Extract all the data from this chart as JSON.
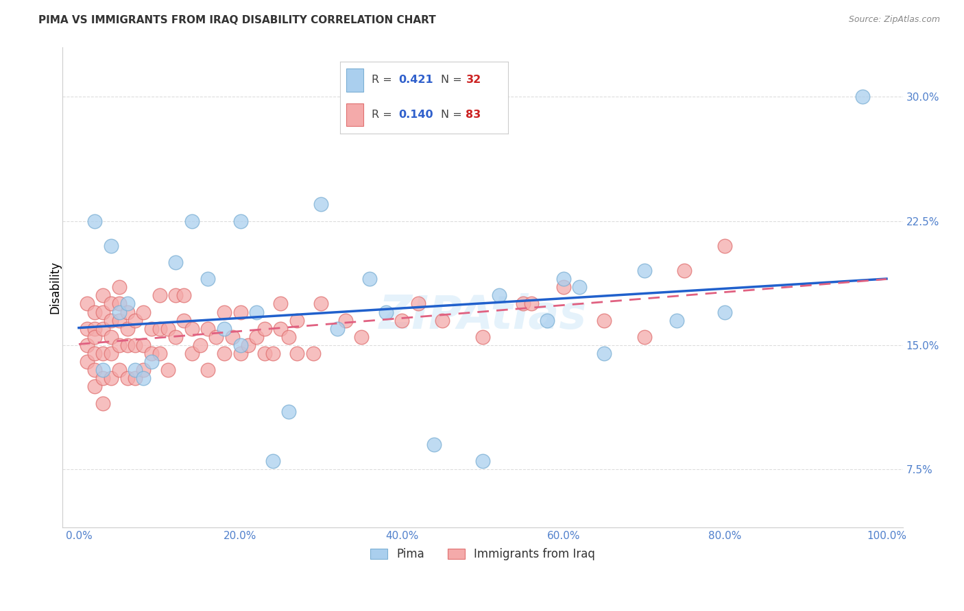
{
  "title": "PIMA VS IMMIGRANTS FROM IRAQ DISABILITY CORRELATION CHART",
  "source": "Source: ZipAtlas.com",
  "ylabel": "Disability",
  "xlim": [
    -2,
    102
  ],
  "ylim": [
    4.0,
    33.0
  ],
  "x_ticks": [
    0,
    20,
    40,
    60,
    80,
    100
  ],
  "y_ticks": [
    7.5,
    15.0,
    22.5,
    30.0
  ],
  "legend_r1": "0.421",
  "legend_n1": "32",
  "legend_r2": "0.140",
  "legend_n2": "83",
  "color_pima_fill": "#aacfee",
  "color_pima_edge": "#7bafd4",
  "color_iraq_fill": "#f4aaaa",
  "color_iraq_edge": "#e07070",
  "color_pima_line": "#2060cc",
  "color_iraq_line": "#e06080",
  "color_text_blue": "#3060cc",
  "color_text_red": "#cc2222",
  "color_tick": "#5080cc",
  "color_grid": "#dddddd",
  "background": "#ffffff",
  "pima_x": [
    2,
    4,
    3,
    5,
    6,
    7,
    8,
    9,
    12,
    14,
    16,
    18,
    20,
    20,
    22,
    24,
    26,
    30,
    32,
    36,
    38,
    44,
    50,
    52,
    58,
    60,
    62,
    65,
    70,
    74,
    80,
    97
  ],
  "pima_y": [
    22.5,
    21.0,
    13.5,
    17.0,
    17.5,
    13.5,
    13.0,
    14.0,
    20.0,
    22.5,
    19.0,
    16.0,
    22.5,
    15.0,
    17.0,
    8.0,
    11.0,
    23.5,
    16.0,
    19.0,
    17.0,
    9.0,
    8.0,
    18.0,
    16.5,
    19.0,
    18.5,
    14.5,
    19.5,
    16.5,
    17.0,
    30.0
  ],
  "iraq_x": [
    1,
    1,
    1,
    1,
    2,
    2,
    2,
    2,
    2,
    2,
    3,
    3,
    3,
    3,
    3,
    3,
    4,
    4,
    4,
    4,
    4,
    5,
    5,
    5,
    5,
    5,
    6,
    6,
    6,
    6,
    7,
    7,
    7,
    8,
    8,
    8,
    9,
    9,
    10,
    10,
    10,
    11,
    11,
    12,
    12,
    13,
    13,
    14,
    14,
    15,
    16,
    16,
    17,
    18,
    18,
    19,
    20,
    20,
    21,
    22,
    23,
    23,
    24,
    25,
    25,
    26,
    27,
    27,
    29,
    30,
    33,
    35,
    40,
    42,
    45,
    50,
    55,
    56,
    60,
    65,
    70,
    75,
    80
  ],
  "iraq_y": [
    17.5,
    16.0,
    15.0,
    14.0,
    17.0,
    16.0,
    15.5,
    14.5,
    13.5,
    12.5,
    18.0,
    17.0,
    16.0,
    14.5,
    13.0,
    11.5,
    17.5,
    16.5,
    15.5,
    14.5,
    13.0,
    18.5,
    17.5,
    16.5,
    15.0,
    13.5,
    17.0,
    16.0,
    15.0,
    13.0,
    16.5,
    15.0,
    13.0,
    17.0,
    15.0,
    13.5,
    16.0,
    14.5,
    18.0,
    16.0,
    14.5,
    16.0,
    13.5,
    18.0,
    15.5,
    18.0,
    16.5,
    16.0,
    14.5,
    15.0,
    16.0,
    13.5,
    15.5,
    17.0,
    14.5,
    15.5,
    17.0,
    14.5,
    15.0,
    15.5,
    16.0,
    14.5,
    14.5,
    17.5,
    16.0,
    15.5,
    16.5,
    14.5,
    14.5,
    17.5,
    16.5,
    15.5,
    16.5,
    17.5,
    16.5,
    15.5,
    17.5,
    17.5,
    18.5,
    16.5,
    15.5,
    19.5,
    21.0
  ]
}
